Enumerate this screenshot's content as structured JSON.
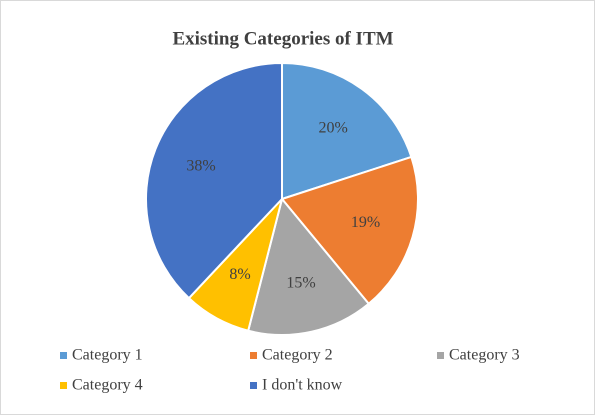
{
  "chart_data": {
    "type": "pie",
    "title": "Existing Categories of ITM",
    "categories": [
      "Category 1",
      "Category 2",
      "Category 3",
      "Category 4",
      "I don't know"
    ],
    "values": [
      20,
      19,
      15,
      8,
      38
    ],
    "value_labels": [
      "20%",
      "19%",
      "15%",
      "8%",
      "38%"
    ],
    "colors": [
      "#5b9bd5",
      "#ed7d31",
      "#a5a5a5",
      "#ffc000",
      "#4472c4"
    ],
    "legend": "bottom"
  }
}
